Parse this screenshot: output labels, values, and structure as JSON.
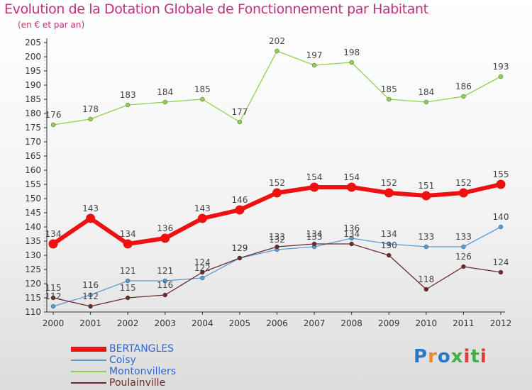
{
  "header": {
    "title": "Evolution de la Dotation Globale de Fonctionnement par Habitant",
    "subtitle": "(en € et par an)"
  },
  "logo": {
    "text": "Proxiti",
    "colors": [
      "#2a78c8",
      "#f08a24",
      "#44b04c",
      "#e23a3a"
    ]
  },
  "chart_data": {
    "type": "line",
    "title": "Evolution de la Dotation Globale de Fonctionnement par Habitant",
    "subtitle": "(en € et par an)",
    "xlabel": "",
    "ylabel": "",
    "x": [
      "2000",
      "2001",
      "2002",
      "2003",
      "2004",
      "2005",
      "2006",
      "2007",
      "2008",
      "2009",
      "2010",
      "2011",
      "2012"
    ],
    "ylim": [
      110,
      205
    ],
    "ytick_step": 5,
    "yticks": [
      "110",
      "115",
      "120",
      "125",
      "130",
      "135",
      "140",
      "145",
      "150",
      "155",
      "160",
      "165",
      "170",
      "175",
      "180",
      "185",
      "190",
      "195",
      "200",
      "205"
    ],
    "grid": false,
    "legend_position": "bottom-left",
    "series": [
      {
        "name": "BERTANGLES",
        "color": "#ee1111",
        "values": [
          134,
          143,
          134,
          136,
          143,
          146,
          152,
          154,
          154,
          152,
          151,
          152,
          155
        ],
        "labels": [
          "134",
          "143",
          "134",
          "136",
          "143",
          "146",
          "152",
          "154",
          "154",
          "152",
          "151",
          "152",
          "155"
        ]
      },
      {
        "name": "Coisy",
        "color": "#5b9bd5",
        "values": [
          112,
          116,
          121,
          121,
          122,
          129,
          132,
          133,
          136,
          134,
          133,
          133,
          140
        ],
        "labels": [
          "112",
          "116",
          "121",
          "121",
          "122",
          "129",
          "132",
          "133",
          "136",
          "134",
          "133",
          "133",
          "140"
        ]
      },
      {
        "name": "Montonvillers",
        "color": "#8fd14f",
        "values": [
          176,
          178,
          183,
          184,
          185,
          177,
          202,
          197,
          198,
          185,
          184,
          186,
          193
        ],
        "labels": [
          "176",
          "178",
          "183",
          "184",
          "185",
          "177",
          "202",
          "197",
          "198",
          "185",
          "184",
          "186",
          "193"
        ]
      },
      {
        "name": "Poulainville",
        "color": "#6b2a2a",
        "values": [
          115,
          112,
          115,
          116,
          124,
          129,
          133,
          134,
          134,
          130,
          118,
          126,
          124
        ],
        "labels": [
          "115",
          "112",
          "115",
          "116",
          "124",
          "129",
          "133",
          "134",
          "134",
          "130",
          "118",
          "126",
          "124"
        ]
      }
    ]
  }
}
